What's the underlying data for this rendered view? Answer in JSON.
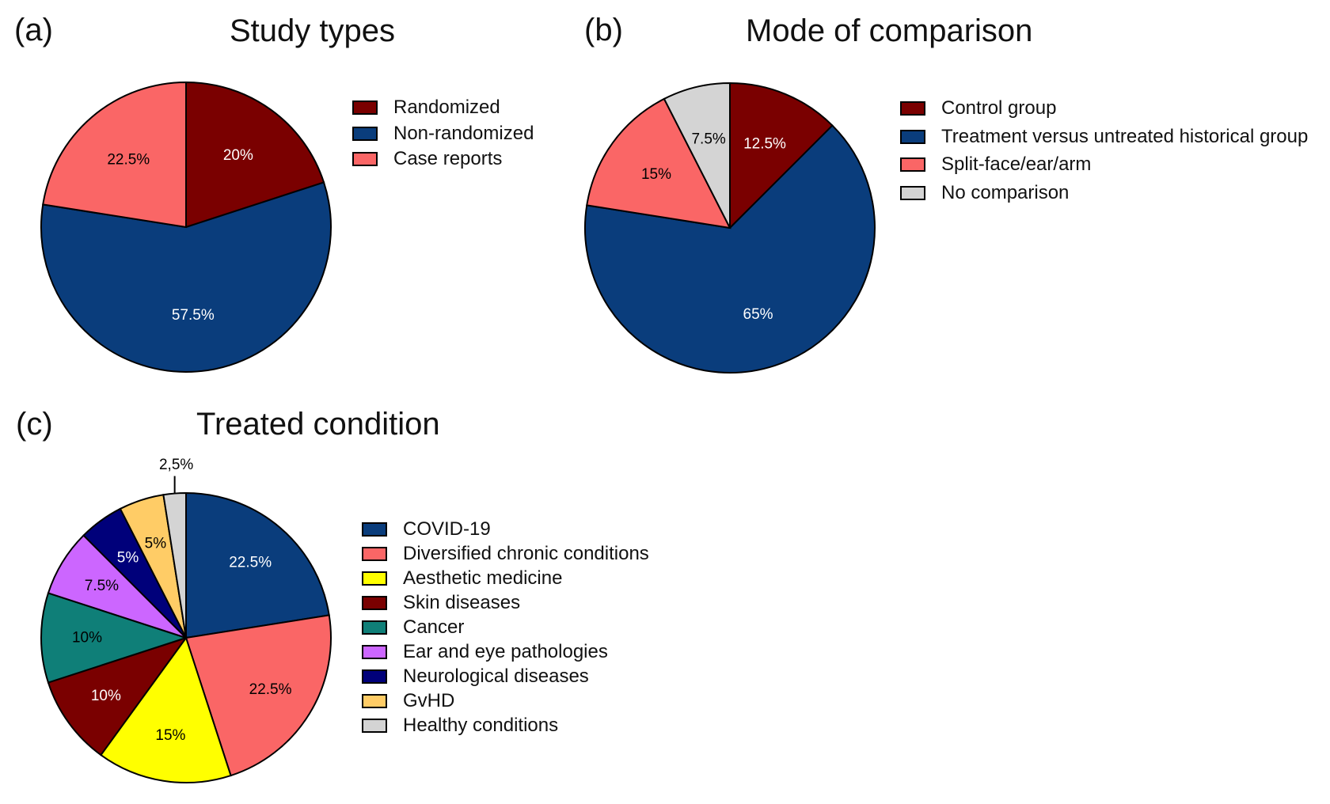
{
  "chart_data": [
    {
      "type": "pie",
      "panel_label": "(a)",
      "title": "Study types",
      "series": [
        {
          "name": "Randomized",
          "value": 20,
          "label": "20%",
          "color": "#7a0000",
          "label_color": "#ffffff"
        },
        {
          "name": "Non-randomized",
          "value": 57.5,
          "label": "57.5%",
          "color": "#0a3d7c",
          "label_color": "#ffffff"
        },
        {
          "name": "Case reports",
          "value": 22.5,
          "label": "22.5%",
          "color": "#fa6666",
          "label_color": "#000000"
        }
      ]
    },
    {
      "type": "pie",
      "panel_label": "(b)",
      "title": "Mode of comparison",
      "series": [
        {
          "name": "Control group",
          "value": 12.5,
          "label": "12.5%",
          "color": "#7a0000",
          "label_color": "#ffffff"
        },
        {
          "name": "Treatment versus untreated historical group",
          "value": 65,
          "label": "65%",
          "color": "#0a3d7c",
          "label_color": "#ffffff"
        },
        {
          "name": "Split-face/ear/arm",
          "value": 15,
          "label": "15%",
          "color": "#fa6666",
          "label_color": "#000000"
        },
        {
          "name": "No comparison",
          "value": 7.5,
          "label": "7.5%",
          "color": "#d4d4d4",
          "label_color": "#000000"
        }
      ]
    },
    {
      "type": "pie",
      "panel_label": "(c)",
      "title": "Treated condition",
      "series": [
        {
          "name": "COVID-19",
          "value": 22.5,
          "label": "22.5%",
          "color": "#0a3d7c",
          "label_color": "#ffffff"
        },
        {
          "name": "Diversified chronic conditions",
          "value": 22.5,
          "label": "22.5%",
          "color": "#fa6666",
          "label_color": "#000000"
        },
        {
          "name": "Aesthetic medicine",
          "value": 15,
          "label": "15%",
          "color": "#ffff00",
          "label_color": "#000000"
        },
        {
          "name": "Skin diseases",
          "value": 10,
          "label": "10%",
          "color": "#7a0000",
          "label_color": "#ffffff"
        },
        {
          "name": "Cancer",
          "value": 10,
          "label": "10%",
          "color": "#0f7f78",
          "label_color": "#000000"
        },
        {
          "name": "Ear and eye pathologies",
          "value": 7.5,
          "label": "7.5%",
          "color": "#cc66ff",
          "label_color": "#000000"
        },
        {
          "name": "Neurological diseases",
          "value": 5,
          "label": "5%",
          "color": "#00007a",
          "label_color": "#ffffff"
        },
        {
          "name": "GvHD",
          "value": 5,
          "label": "5%",
          "color": "#ffcc66",
          "label_color": "#000000"
        },
        {
          "name": "Healthy conditions",
          "value": 2.5,
          "label": "2,5%",
          "color": "#d4d4d4",
          "label_color": "#000000",
          "label_outside": true
        }
      ]
    }
  ]
}
